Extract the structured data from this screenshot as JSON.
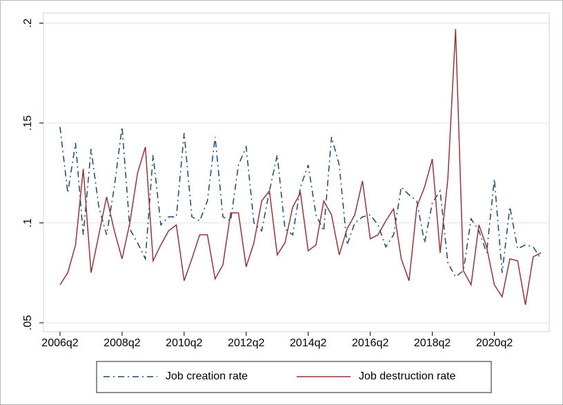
{
  "chart_data": {
    "type": "line",
    "categories": [
      "2006q2",
      null,
      null,
      null,
      null,
      null,
      null,
      null,
      "2008q2",
      null,
      null,
      null,
      null,
      null,
      null,
      null,
      "2010q2",
      null,
      null,
      null,
      null,
      null,
      null,
      null,
      "2012q2",
      null,
      null,
      null,
      null,
      null,
      null,
      null,
      "2014q2",
      null,
      null,
      null,
      null,
      null,
      null,
      null,
      "2016q2",
      null,
      null,
      null,
      null,
      null,
      null,
      null,
      "2018q2",
      null,
      null,
      null,
      null,
      null,
      null,
      null,
      "2020q2",
      null,
      null,
      null,
      null,
      null,
      null
    ],
    "series": [
      {
        "name": "Job creation rate",
        "color": "#1a476f",
        "dash": "9 5 2 5",
        "values": [
          0.148,
          0.115,
          0.14,
          0.094,
          0.137,
          0.108,
          0.094,
          0.118,
          0.148,
          0.097,
          0.09,
          0.082,
          0.134,
          0.099,
          0.103,
          0.103,
          0.145,
          0.103,
          0.101,
          0.111,
          0.143,
          0.103,
          0.101,
          0.129,
          0.138,
          0.1,
          0.096,
          0.116,
          0.134,
          0.097,
          0.094,
          0.118,
          0.129,
          0.104,
          0.096,
          0.143,
          0.129,
          0.089,
          0.1,
          0.103,
          0.104,
          0.099,
          0.088,
          0.094,
          0.118,
          0.114,
          0.111,
          0.09,
          0.11,
          0.116,
          0.08,
          0.073,
          0.076,
          0.102,
          0.096,
          0.085,
          0.122,
          0.075,
          0.108,
          0.087,
          0.089,
          0.088,
          0.082
        ]
      },
      {
        "name": "Job destruction rate",
        "color": "#90353b",
        "dash": "none",
        "values": [
          0.069,
          0.075,
          0.089,
          0.127,
          0.075,
          0.094,
          0.113,
          0.096,
          0.082,
          0.1,
          0.125,
          0.138,
          0.081,
          0.089,
          0.096,
          0.099,
          0.071,
          0.082,
          0.094,
          0.094,
          0.072,
          0.079,
          0.105,
          0.105,
          0.078,
          0.09,
          0.111,
          0.116,
          0.084,
          0.09,
          0.108,
          0.115,
          0.086,
          0.089,
          0.111,
          0.104,
          0.084,
          0.097,
          0.104,
          0.121,
          0.092,
          0.094,
          0.101,
          0.107,
          0.082,
          0.071,
          0.108,
          0.118,
          0.132,
          0.085,
          0.122,
          0.197,
          0.076,
          0.069,
          0.099,
          0.088,
          0.069,
          0.063,
          0.082,
          0.081,
          0.059,
          0.083,
          0.085
        ]
      }
    ],
    "ylim": [
      0.0455,
      0.205
    ],
    "yticks": [
      {
        "value": 0.05,
        "label": ".05"
      },
      {
        "value": 0.1,
        "label": ".1"
      },
      {
        "value": 0.15,
        "label": ".15"
      },
      {
        "value": 0.2,
        "label": ".2"
      }
    ],
    "grid": true
  }
}
